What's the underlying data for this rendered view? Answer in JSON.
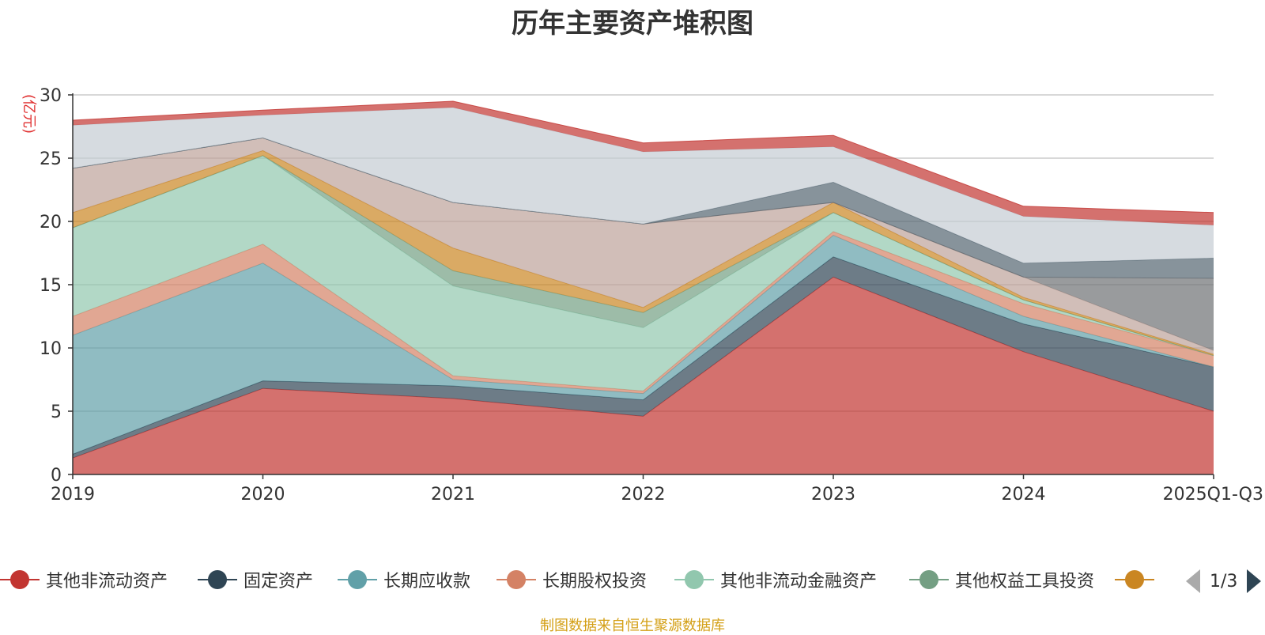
{
  "chart_data": {
    "type": "area",
    "stacked": true,
    "title": "历年主要资产堆积图",
    "ylabel": "(亿元)",
    "ylim": [
      0,
      30
    ],
    "yticks": [
      0,
      5,
      10,
      15,
      20,
      25,
      30
    ],
    "categories": [
      "2019",
      "2020",
      "2021",
      "2022",
      "2023",
      "2024",
      "2025Q1-Q3"
    ],
    "series": [
      {
        "name": "其他非流动资产",
        "color": "#c23531",
        "values": [
          1.3,
          6.8,
          6.0,
          4.6,
          15.6,
          9.7,
          5.0
        ]
      },
      {
        "name": "固定资产",
        "color": "#2f4554",
        "values": [
          0.3,
          0.6,
          1.0,
          1.3,
          1.6,
          2.2,
          3.5
        ]
      },
      {
        "name": "长期应收款",
        "color": "#61a0a8",
        "values": [
          9.4,
          9.3,
          0.5,
          0.5,
          1.7,
          0.6,
          0.0
        ]
      },
      {
        "name": "长期股权投资",
        "color": "#d48265",
        "values": [
          1.5,
          1.5,
          0.3,
          0.2,
          0.3,
          1.0,
          0.9
        ]
      },
      {
        "name": "其他非流动金融资产",
        "color": "#91c7ae",
        "values": [
          7.0,
          7.0,
          7.1,
          5.0,
          1.5,
          0.3,
          0.0
        ]
      },
      {
        "name": "其他权益工具投资",
        "color": "#749f83",
        "values": [
          0.0,
          0.0,
          1.2,
          1.2,
          0.0,
          0.0,
          0.0
        ]
      },
      {
        "name": "",
        "color": "#ca8622",
        "values": [
          1.2,
          0.4,
          1.8,
          0.4,
          0.8,
          0.2,
          0.1
        ]
      },
      {
        "name": "",
        "color": "#bda29a",
        "values": [
          3.5,
          1.0,
          3.6,
          6.6,
          0.0,
          1.6,
          0.3
        ]
      },
      {
        "name": "",
        "color": "#6e7074",
        "values": [
          0.0,
          0.0,
          0.0,
          0.0,
          0.0,
          0.0,
          5.7
        ]
      },
      {
        "name": "",
        "color": "#546570",
        "values": [
          0.0,
          0.0,
          0.0,
          0.0,
          1.6,
          1.1,
          1.6
        ]
      },
      {
        "name": "",
        "color": "#c4ccd3",
        "values": [
          3.4,
          1.8,
          7.5,
          5.7,
          2.8,
          3.7,
          2.6
        ]
      },
      {
        "name": "",
        "color": "#c23531",
        "values": [
          0.4,
          0.4,
          0.5,
          0.7,
          0.9,
          0.8,
          1.0
        ]
      }
    ],
    "legend_position": "bottom",
    "legend_page": "1/3",
    "source": "制图数据来自恒生聚源数据库"
  }
}
